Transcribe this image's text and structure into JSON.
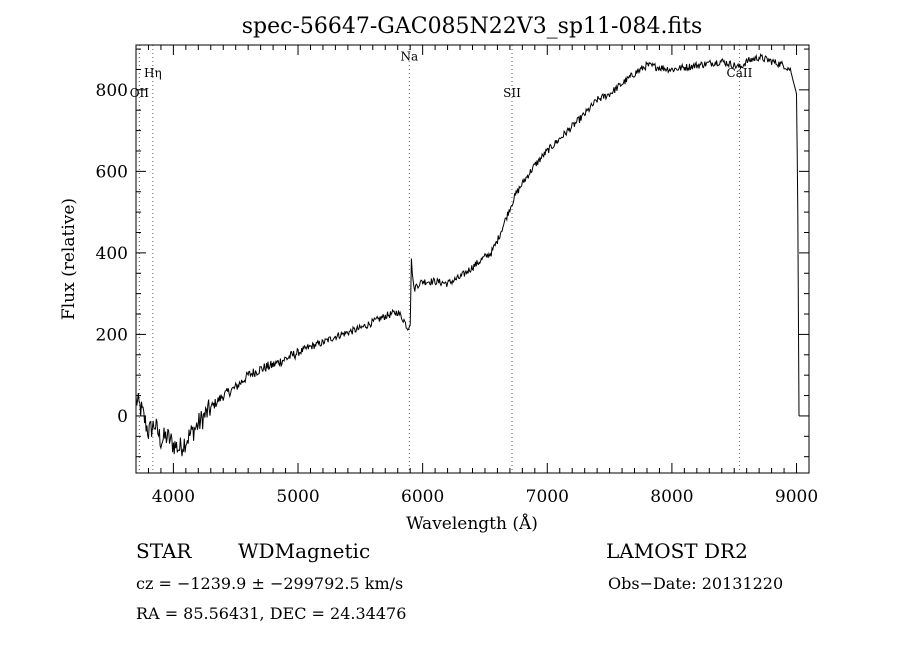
{
  "chart_data": {
    "type": "line",
    "title": "spec-56647-GAC085N22V3_sp11-084.fits",
    "xlabel": "Wavelength (Å)",
    "ylabel": "Flux (relative)",
    "xlim": [
      3700,
      9100
    ],
    "ylim": [
      -140,
      910
    ],
    "xticks": [
      4000,
      5000,
      6000,
      7000,
      8000,
      9000
    ],
    "yticks": [
      0,
      200,
      400,
      600,
      800
    ],
    "xticklabels": [
      "4000",
      "5000",
      "6000",
      "7000",
      "8000",
      "9000"
    ],
    "yticklabels": [
      "0",
      "200",
      "400",
      "600",
      "800"
    ],
    "grid": false,
    "line_color": "#000000",
    "marker_color": "#cc3333",
    "lines": [
      {
        "name": "Hη",
        "x": 3835,
        "label_y": 832
      },
      {
        "name": "OII",
        "x": 3727,
        "label_y": 783
      },
      {
        "name": "Na",
        "x": 5893,
        "label_y": 872
      },
      {
        "name": "SII",
        "x": 6717,
        "label_y": 783
      },
      {
        "name": "CaII",
        "x": 8542,
        "label_y": 832
      }
    ],
    "series": [
      {
        "x": [
          3700,
          3750,
          3800,
          3850,
          3900,
          3950,
          4000,
          4050,
          4100,
          4150,
          4200,
          4300,
          4400,
          4500,
          4600,
          4700,
          4800,
          4900,
          5000,
          5100,
          5200,
          5300,
          5400,
          5500,
          5600,
          5700,
          5800,
          5850,
          5880,
          5900,
          5910,
          5930,
          5950,
          6000,
          6100,
          6200,
          6300,
          6400,
          6500,
          6550,
          6600,
          6650,
          6700,
          6750,
          6800,
          6900,
          7000,
          7100,
          7200,
          7300,
          7400,
          7500,
          7600,
          7700,
          7800,
          7900,
          8000,
          8100,
          8200,
          8300,
          8400,
          8450,
          8500,
          8550,
          8600,
          8700,
          8800,
          8900,
          8950,
          9000,
          9010,
          9020
        ],
        "y": [
          40,
          10,
          -40,
          -20,
          -60,
          -50,
          -70,
          -80,
          -60,
          -40,
          -20,
          20,
          50,
          70,
          100,
          115,
          125,
          140,
          155,
          170,
          180,
          195,
          205,
          215,
          230,
          245,
          255,
          235,
          215,
          230,
          380,
          310,
          320,
          330,
          330,
          325,
          340,
          365,
          390,
          400,
          430,
          470,
          510,
          545,
          570,
          615,
          650,
          680,
          710,
          740,
          775,
          790,
          815,
          840,
          860,
          855,
          850,
          855,
          860,
          865,
          870,
          865,
          860,
          855,
          870,
          880,
          870,
          860,
          850,
          790,
          500,
          0
        ]
      }
    ]
  },
  "info": {
    "object_class": "STAR",
    "subclass": "WDMagnetic",
    "survey": "LAMOST DR2",
    "redshift_line": "cz = −1239.9 ± −299792.5 km/s",
    "obs_date": "Obs−Date: 20131220",
    "coords": "RA =  85.56431, DEC =  24.34476"
  }
}
